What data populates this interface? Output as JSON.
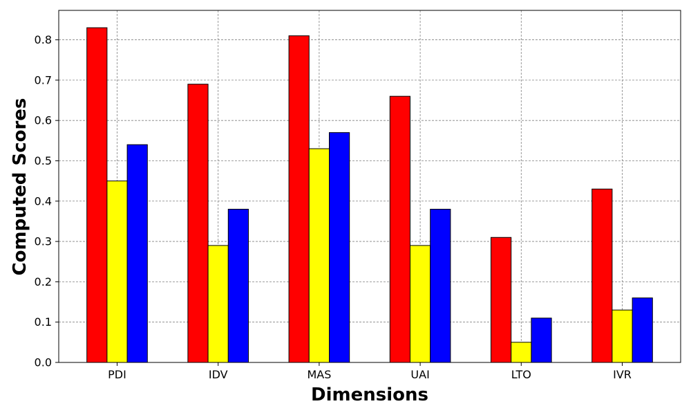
{
  "chart_data": {
    "type": "bar",
    "title": "",
    "xlabel": "Dimensions",
    "ylabel": "Computed Scores",
    "categories": [
      "PDI",
      "IDV",
      "MAS",
      "UAI",
      "LTO",
      "IVR"
    ],
    "series": [
      {
        "values": [
          0.83,
          0.69,
          0.81,
          0.66,
          0.31,
          0.43
        ],
        "color": "#ff0000"
      },
      {
        "values": [
          0.45,
          0.29,
          0.53,
          0.29,
          0.05,
          0.13
        ],
        "color": "#ffff00"
      },
      {
        "values": [
          0.54,
          0.38,
          0.57,
          0.38,
          0.11,
          0.16
        ],
        "color": "#0000ff"
      }
    ],
    "ylim": [
      0,
      0.873
    ],
    "yticks": [
      "0.0",
      "0.1",
      "0.2",
      "0.3",
      "0.4",
      "0.5",
      "0.6",
      "0.7",
      "0.8"
    ],
    "grid": true,
    "legend": "none",
    "bar_edge_color": "#000000"
  }
}
